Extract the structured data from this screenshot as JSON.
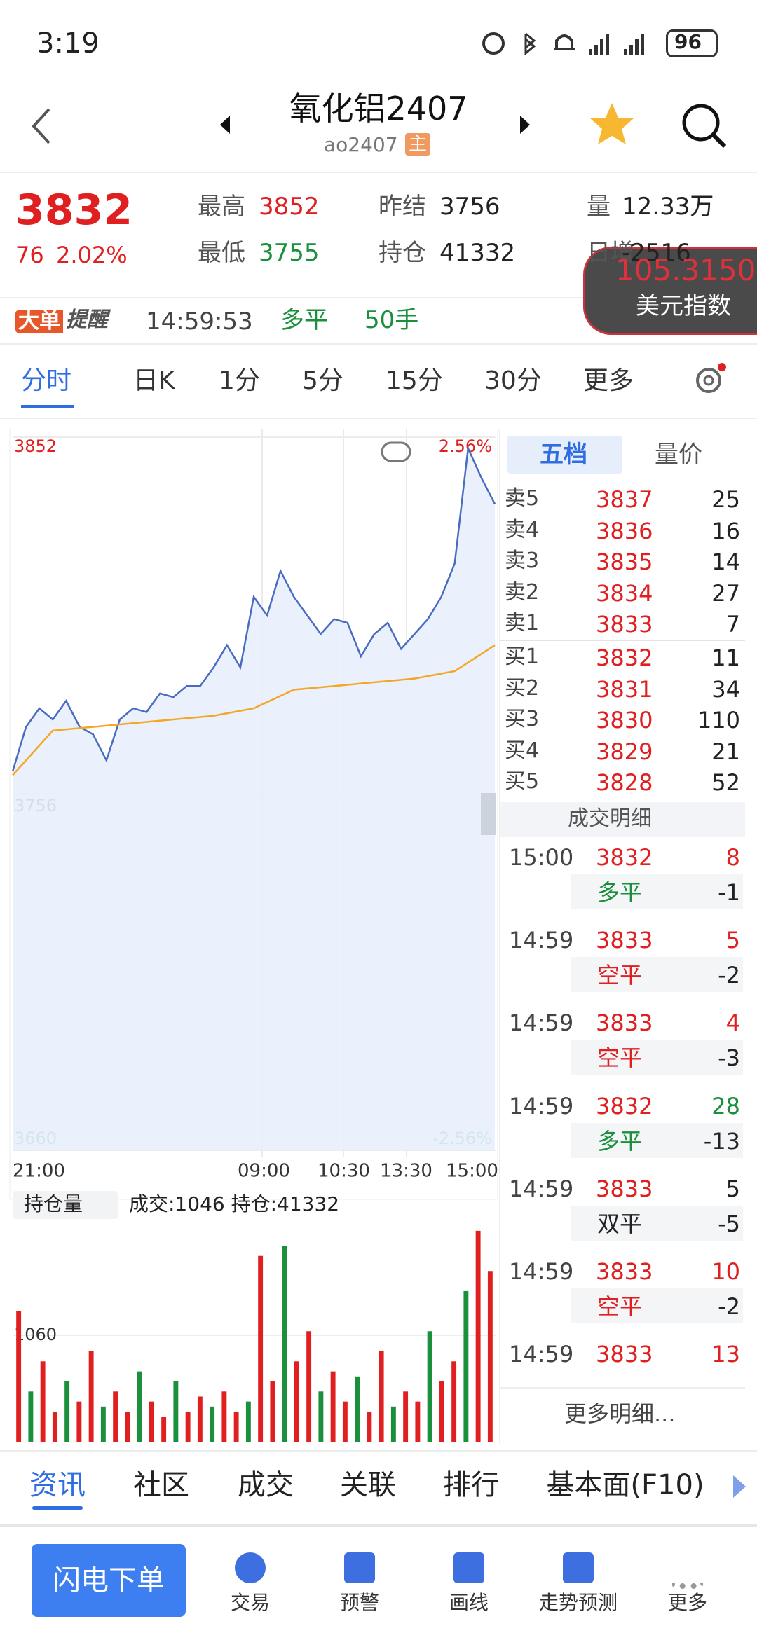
{
  "status_bar": {
    "time": "3:19",
    "battery": "96"
  },
  "header": {
    "title": "氧化铝2407",
    "code": "ao2407",
    "badge": "主"
  },
  "quote": {
    "price": "3832",
    "change": "76",
    "change_pct": "2.02%",
    "stats": [
      {
        "label": "最高",
        "value": "3852",
        "color": "#e02020"
      },
      {
        "label": "昨结",
        "value": "3756",
        "color": "#222222"
      },
      {
        "label": "量",
        "value": "12.33万",
        "color": "#222222"
      },
      {
        "label": "最低",
        "value": "3755",
        "color": "#1a8f3c"
      },
      {
        "label": "持仓",
        "value": "41332",
        "color": "#222222"
      },
      {
        "label": "日增",
        "value": "-2516",
        "color": "#222222"
      }
    ]
  },
  "overlay": {
    "value": "105.3150",
    "label": "美元指数"
  },
  "alert": {
    "badge_a": "大单",
    "badge_b": "提醒",
    "time": "14:59:53",
    "type": "多平",
    "qty": "50手"
  },
  "period_tabs": [
    "分时",
    "日K",
    "1分",
    "5分",
    "15分",
    "30分",
    "更多"
  ],
  "chart": {
    "ylim": [
      3660,
      3852
    ],
    "yticks": [
      3852,
      3756,
      3660
    ],
    "pct_labels": [
      "2.56%",
      "-2.56%"
    ],
    "xlabels": [
      "21:00",
      "09:00",
      "10:30",
      "13:30",
      "15:00"
    ],
    "price": [
      3762,
      3774,
      3779,
      3776,
      3781,
      3774,
      3772,
      3765,
      3776,
      3779,
      3778,
      3783,
      3782,
      3785,
      3785,
      3790,
      3796,
      3790,
      3809,
      3804,
      3816,
      3809,
      3804,
      3799,
      3803,
      3802,
      3793,
      3799,
      3802,
      3795,
      3799,
      3803,
      3809,
      3818,
      3849,
      3841,
      3834
    ],
    "avg": [
      3761,
      3773,
      3774,
      3775,
      3776,
      3777,
      3779,
      3784,
      3785,
      3786,
      3787,
      3789,
      3796
    ],
    "price_color": "#4a6cc0",
    "avg_color": "#f5a623",
    "volume": {
      "label": "持仓量",
      "summary": "成交:1046  持仓:41332",
      "ylim": [
        0,
        2120
      ],
      "yticks": [
        1060
      ],
      "values": [
        1300,
        500,
        800,
        300,
        600,
        400,
        900,
        350,
        500,
        300,
        700,
        400,
        250,
        600,
        300,
        450,
        350,
        500,
        300,
        400,
        1850,
        600,
        1950,
        800,
        1100,
        500,
        700,
        400,
        650,
        300,
        900,
        350,
        500,
        400,
        1100,
        600,
        800,
        1500,
        2100,
        1700
      ]
    }
  },
  "depth": {
    "tabs": [
      "五档",
      "量价"
    ],
    "asks": [
      {
        "label": "卖5",
        "price": "3837",
        "qty": "25"
      },
      {
        "label": "卖4",
        "price": "3836",
        "qty": "16"
      },
      {
        "label": "卖3",
        "price": "3835",
        "qty": "14"
      },
      {
        "label": "卖2",
        "price": "3834",
        "qty": "27"
      },
      {
        "label": "卖1",
        "price": "3833",
        "qty": "7"
      }
    ],
    "bids": [
      {
        "label": "买1",
        "price": "3832",
        "qty": "11"
      },
      {
        "label": "买2",
        "price": "3831",
        "qty": "34"
      },
      {
        "label": "买3",
        "price": "3830",
        "qty": "110"
      },
      {
        "label": "买4",
        "price": "3829",
        "qty": "21"
      },
      {
        "label": "买5",
        "price": "3828",
        "qty": "52"
      }
    ]
  },
  "trades": {
    "title": "成交明细",
    "rows": [
      {
        "time": "15:00",
        "price": "3832",
        "qty": "8",
        "qty_color": "#e02020",
        "type": "多平",
        "type_color": "#1a8f3c",
        "oi": "-1"
      },
      {
        "time": "14:59",
        "price": "3833",
        "qty": "5",
        "qty_color": "#e02020",
        "type": "空平",
        "type_color": "#e02020",
        "oi": "-2"
      },
      {
        "time": "14:59",
        "price": "3833",
        "qty": "4",
        "qty_color": "#e02020",
        "type": "空平",
        "type_color": "#e02020",
        "oi": "-3"
      },
      {
        "time": "14:59",
        "price": "3832",
        "qty": "28",
        "qty_color": "#1a8f3c",
        "type": "多平",
        "type_color": "#1a8f3c",
        "oi": "-13"
      },
      {
        "time": "14:59",
        "price": "3833",
        "qty": "5",
        "qty_color": "#222222",
        "type": "双平",
        "type_color": "#222222",
        "oi": "-5"
      },
      {
        "time": "14:59",
        "price": "3833",
        "qty": "10",
        "qty_color": "#e02020",
        "type": "空平",
        "type_color": "#e02020",
        "oi": "-2"
      },
      {
        "time": "14:59",
        "price": "3833",
        "qty": "13",
        "qty_color": "#e02020"
      }
    ],
    "more": "更多明细..."
  },
  "bottom_tabs": [
    "资讯",
    "社区",
    "成交",
    "关联",
    "排行",
    "基本面(F10)"
  ],
  "toolbar": {
    "button": "闪电下单",
    "items": [
      "交易",
      "预警",
      "画线",
      "走势预测",
      "更多"
    ]
  }
}
